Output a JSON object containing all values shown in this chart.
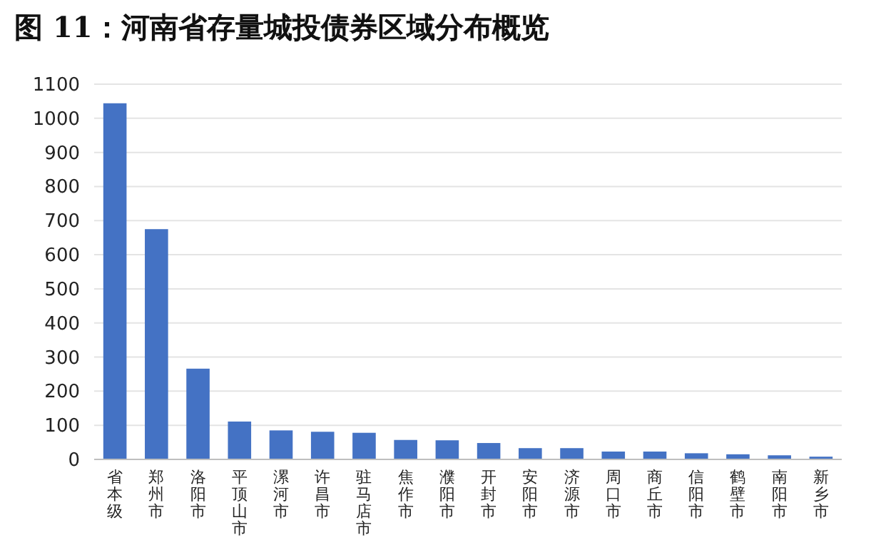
{
  "chart_data": {
    "type": "bar",
    "title": "图 11：河南省存量城投债券区域分布概览",
    "categories": [
      "省本级",
      "郑州市",
      "洛阳市",
      "平顶山市",
      "漯河市",
      "许昌市",
      "驻马店市",
      "焦作市",
      "濮阳市",
      "开封市",
      "安阳市",
      "济源市",
      "周口市",
      "商丘市",
      "信阳市",
      "鹤壁市",
      "南阳市",
      "新乡市"
    ],
    "values": [
      1044,
      675,
      266,
      111,
      85,
      81,
      78,
      57,
      56,
      48,
      33,
      33,
      23,
      23,
      18,
      15,
      12,
      8
    ],
    "color": "#4472c4",
    "ylim": [
      0,
      1100
    ],
    "yticks": [
      0,
      100,
      200,
      300,
      400,
      500,
      600,
      700,
      800,
      900,
      1000,
      1100
    ],
    "grid": "y"
  }
}
